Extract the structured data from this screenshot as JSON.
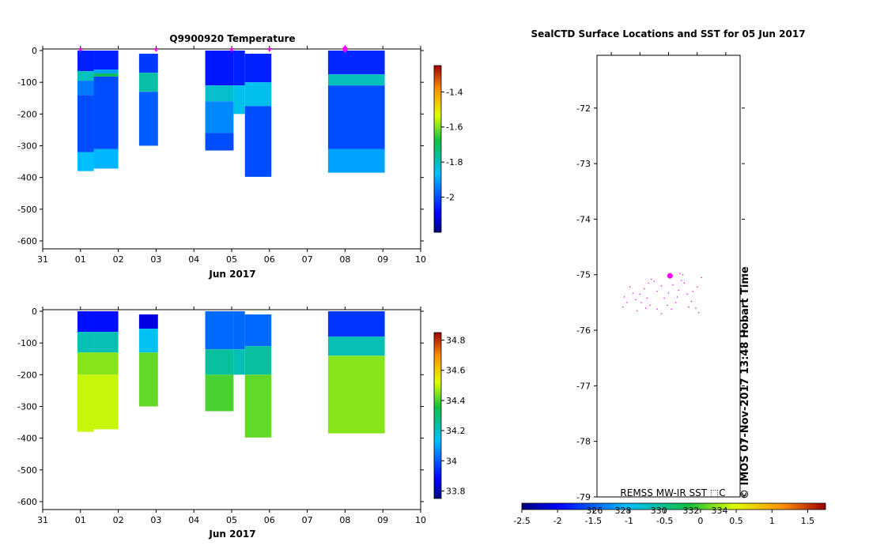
{
  "chart_data": [
    {
      "id": "temperature",
      "type": "heatmap",
      "title": "Q9900920  Temperature",
      "xlabel": "Jun 2017",
      "x_ticks": [
        "31",
        "01",
        "02",
        "03",
        "04",
        "05",
        "06",
        "07",
        "08",
        "09",
        "10"
      ],
      "x_range_days": [
        0,
        10
      ],
      "ylim": [
        -625,
        5
      ],
      "y_ticks": [
        0,
        -100,
        -200,
        -300,
        -400,
        -500,
        -600
      ],
      "colorbar": {
        "range": [
          -2.2,
          -1.25
        ],
        "ticks": [
          -1.4,
          -1.6,
          -1.8,
          -2
        ],
        "tick_labels": [
          "-1.4",
          "-1.6",
          "-1.8",
          "-2"
        ]
      },
      "profile_markers_day": [
        1.0,
        3.0,
        5.0,
        6.0,
        8.0
      ],
      "highlight_marker_day": 8.0,
      "profiles": [
        {
          "x0": 0.92,
          "x1": 1.35,
          "max_depth": 380,
          "layers": [
            [
              0,
              65,
              -2.05
            ],
            [
              65,
              95,
              -1.8
            ],
            [
              95,
              140,
              -1.95
            ],
            [
              140,
              320,
              -2.0
            ],
            [
              320,
              380,
              -1.87
            ]
          ]
        },
        {
          "x0": 1.35,
          "x1": 2.0,
          "max_depth": 372,
          "layers": [
            [
              0,
              60,
              -2.05
            ],
            [
              60,
              72,
              -1.9
            ],
            [
              72,
              82,
              -1.7
            ],
            [
              82,
              310,
              -2.0
            ],
            [
              310,
              372,
              -1.88
            ]
          ]
        },
        {
          "x0": 2.55,
          "x1": 3.05,
          "max_depth": 300,
          "layers": [
            [
              10,
              70,
              -2.02
            ],
            [
              70,
              130,
              -1.78
            ],
            [
              130,
              300,
              -1.98
            ]
          ]
        },
        {
          "x0": 4.3,
          "x1": 5.05,
          "max_depth": 315,
          "layers": [
            [
              0,
              110,
              -2.06
            ],
            [
              110,
              160,
              -1.82
            ],
            [
              160,
              260,
              -1.93
            ],
            [
              260,
              315,
              -2.0
            ]
          ]
        },
        {
          "x0": 5.05,
          "x1": 5.35,
          "max_depth": 200,
          "layers": [
            [
              0,
              110,
              -2.05
            ],
            [
              110,
              200,
              -1.85
            ]
          ]
        },
        {
          "x0": 5.35,
          "x1": 6.05,
          "max_depth": 398,
          "layers": [
            [
              10,
              100,
              -2.05
            ],
            [
              100,
              175,
              -1.85
            ],
            [
              175,
              398,
              -2.0
            ]
          ]
        },
        {
          "x0": 7.55,
          "x1": 9.05,
          "max_depth": 385,
          "layers": [
            [
              0,
              75,
              -2.04
            ],
            [
              75,
              110,
              -1.8
            ],
            [
              110,
              310,
              -2.0
            ],
            [
              310,
              385,
              -1.9
            ]
          ]
        }
      ]
    },
    {
      "id": "salinity",
      "type": "heatmap",
      "title": "",
      "xlabel": "Jun 2017",
      "x_ticks": [
        "31",
        "01",
        "02",
        "03",
        "04",
        "05",
        "06",
        "07",
        "08",
        "09",
        "10"
      ],
      "x_range_days": [
        0,
        10
      ],
      "ylim": [
        -625,
        5
      ],
      "y_ticks": [
        0,
        -100,
        -200,
        -300,
        -400,
        -500,
        -600
      ],
      "colorbar": {
        "range": [
          33.75,
          34.85
        ],
        "ticks": [
          34.8,
          34.6,
          34.4,
          34.2,
          34,
          33.8
        ],
        "tick_labels": [
          "34.8",
          "34.6",
          "34.4",
          "34.2",
          "34",
          "33.8"
        ]
      },
      "profiles": [
        {
          "x0": 0.92,
          "x1": 1.35,
          "max_depth": 380,
          "layers": [
            [
              0,
              65,
              33.9
            ],
            [
              65,
              130,
              34.22
            ],
            [
              130,
              200,
              34.45
            ],
            [
              200,
              380,
              34.5
            ]
          ]
        },
        {
          "x0": 1.35,
          "x1": 2.0,
          "max_depth": 372,
          "layers": [
            [
              0,
              65,
              33.9
            ],
            [
              65,
              130,
              34.22
            ],
            [
              130,
              200,
              34.45
            ],
            [
              200,
              372,
              34.5
            ]
          ]
        },
        {
          "x0": 2.55,
          "x1": 3.05,
          "max_depth": 300,
          "layers": [
            [
              10,
              55,
              33.85
            ],
            [
              55,
              130,
              34.15
            ],
            [
              130,
              300,
              34.42
            ]
          ]
        },
        {
          "x0": 4.3,
          "x1": 5.05,
          "max_depth": 315,
          "layers": [
            [
              0,
              120,
              34.02
            ],
            [
              120,
              200,
              34.25
            ],
            [
              200,
              315,
              34.4
            ]
          ]
        },
        {
          "x0": 5.05,
          "x1": 5.35,
          "max_depth": 200,
          "layers": [
            [
              0,
              120,
              34.02
            ],
            [
              120,
              200,
              34.22
            ]
          ]
        },
        {
          "x0": 5.35,
          "x1": 6.05,
          "max_depth": 398,
          "layers": [
            [
              10,
              110,
              34.02
            ],
            [
              110,
              200,
              34.25
            ],
            [
              200,
              398,
              34.42
            ]
          ]
        },
        {
          "x0": 7.55,
          "x1": 9.05,
          "max_depth": 385,
          "layers": [
            [
              0,
              80,
              33.95
            ],
            [
              80,
              140,
              34.22
            ],
            [
              140,
              385,
              34.45
            ]
          ]
        }
      ]
    },
    {
      "id": "map",
      "type": "scatter",
      "title": "SealCTD Surface Locations and SST for 05 Jun 2017",
      "ylim": [
        -79,
        -71.05
      ],
      "y_ticks": [
        -72,
        -73,
        -74,
        -75,
        -76,
        -77,
        -78,
        -79
      ],
      "y_tick_labels": [
        "-72",
        "-73",
        "-74",
        "-75",
        "-76",
        "-77",
        "-78",
        "-79"
      ],
      "x_ticks_relative": [
        0.1,
        0.3,
        0.5,
        0.7,
        0.9
      ],
      "current_location": {
        "rel_x": 0.51,
        "lat": -75.02
      },
      "track_points": [
        [
          0.23,
          -75.22
        ],
        [
          0.25,
          -75.33
        ],
        [
          0.19,
          -75.4
        ],
        [
          0.21,
          -75.5
        ],
        [
          0.18,
          -75.58
        ],
        [
          0.27,
          -75.45
        ],
        [
          0.3,
          -75.35
        ],
        [
          0.33,
          -75.25
        ],
        [
          0.36,
          -75.15
        ],
        [
          0.38,
          -75.08
        ],
        [
          0.4,
          -75.12
        ],
        [
          0.31,
          -75.5
        ],
        [
          0.34,
          -75.6
        ],
        [
          0.37,
          -75.55
        ],
        [
          0.42,
          -75.3
        ],
        [
          0.45,
          -75.2
        ],
        [
          0.47,
          -75.42
        ],
        [
          0.49,
          -75.55
        ],
        [
          0.5,
          -75.33
        ],
        [
          0.52,
          -75.62
        ],
        [
          0.55,
          -75.5
        ],
        [
          0.57,
          -75.28
        ],
        [
          0.59,
          -75.1
        ],
        [
          0.6,
          -75.0
        ],
        [
          0.58,
          -74.98
        ],
        [
          0.61,
          -75.15
        ],
        [
          0.63,
          -75.35
        ],
        [
          0.66,
          -75.48
        ],
        [
          0.69,
          -75.6
        ],
        [
          0.71,
          -75.68
        ],
        [
          0.67,
          -75.3
        ],
        [
          0.7,
          -75.22
        ],
        [
          0.73,
          -75.05
        ],
        [
          0.64,
          -75.58
        ],
        [
          0.42,
          -75.62
        ],
        [
          0.28,
          -75.65
        ],
        [
          0.45,
          -75.7
        ],
        [
          0.56,
          -75.4
        ],
        [
          0.53,
          -75.18
        ],
        [
          0.35,
          -75.42
        ]
      ],
      "side_text": "© IMOS 07-Nov-2017 13:48 Hobart Time",
      "sst_colorbar": {
        "label": "REMSS MW-IR SST ⬚C",
        "range": [
          -2.5,
          1.75
        ],
        "ticks": [
          -2.5,
          -2,
          -1.5,
          -1,
          -0.5,
          0,
          0.5,
          1,
          1.5
        ],
        "tick_labels": [
          "-2.5",
          "-2",
          "-1.5",
          "-1",
          "-0.5",
          "0",
          "0.5",
          "1",
          "1.5"
        ],
        "overlap_labels": [
          "326",
          "328",
          "330",
          "332",
          "334"
        ],
        "overlap_label_values": [
          -1.35,
          -0.95,
          -0.45,
          0,
          0.4
        ]
      }
    }
  ],
  "colors": {
    "marker": "#ff00ff",
    "axis": "#000000"
  }
}
